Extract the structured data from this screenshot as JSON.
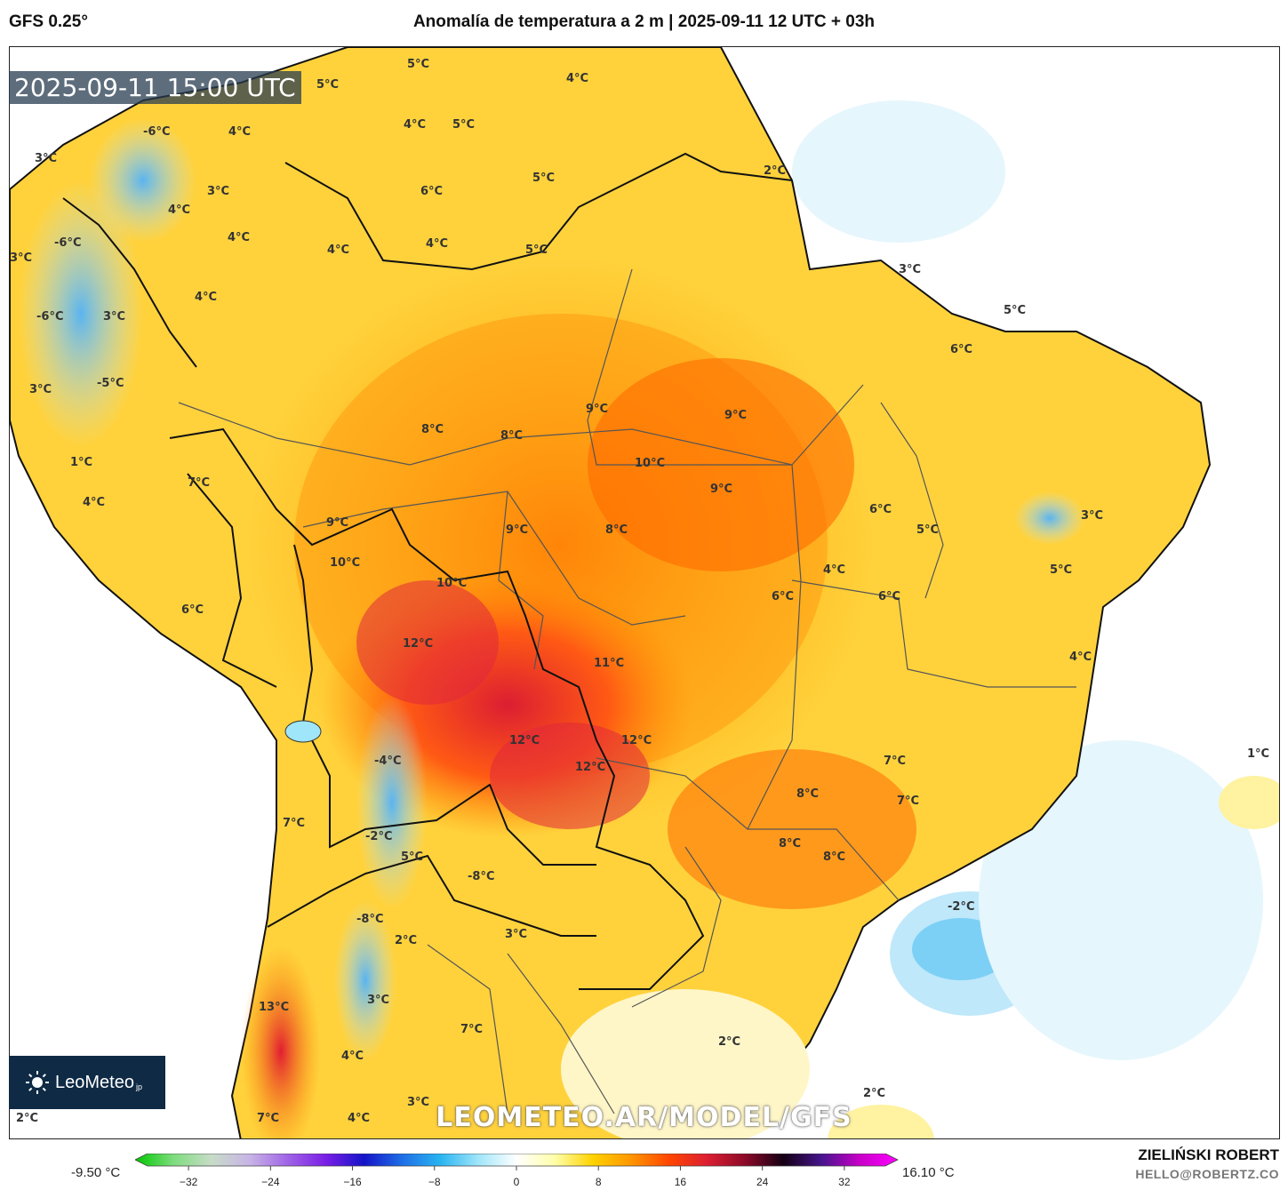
{
  "header": {
    "model": "GFS 0.25°",
    "title": "Anomalía de temperatura a 2 m | 2025-09-11 12 UTC + 03h"
  },
  "timestamp": "2025-09-11 15:00 UTC",
  "watermark": "LEOMETEO.AR/MODEL/GFS",
  "logo": {
    "text": "LeoMeteo",
    "suffix": "jp"
  },
  "credits": {
    "author": "ZIELIŃSKI ROBERT",
    "contact": "HELLO@ROBERTZ.CO"
  },
  "colorbar": {
    "min_label": "-9.50 °C",
    "max_label": "16.10 °C",
    "ticks": [
      "−32",
      "−24",
      "−16",
      "−8",
      "0",
      "8",
      "16",
      "24",
      "32"
    ],
    "range": [
      -36,
      36
    ],
    "colors": [
      "#00c800",
      "#7ddc7d",
      "#c8dcc8",
      "#c8b4e6",
      "#a064e6",
      "#7a1ee6",
      "#1414c8",
      "#1e6ee6",
      "#28b4f0",
      "#a0e6fa",
      "#ffffff",
      "#ffffaa",
      "#ffd200",
      "#ff9600",
      "#ff4600",
      "#dc1e32",
      "#8c0a28",
      "#140014",
      "#46148c",
      "#c800c8",
      "#ff00ff"
    ]
  },
  "map_labels": [
    "5°C",
    "5°C",
    "4°C",
    "5°C",
    "-6°C",
    "4°C",
    "3°C",
    "4°C",
    "2°C",
    "6°C",
    "5°C",
    "3°C",
    "3°C",
    "4°C",
    "-6°C",
    "4°C",
    "4°C",
    "4°C",
    "5°C",
    "3°C",
    "4°C",
    "-6°C",
    "3°C",
    "5°C",
    "6°C",
    "-5°C",
    "3°C",
    "9°C",
    "9°C",
    "8°C",
    "8°C",
    "1°C",
    "10°C",
    "7°C",
    "9°C",
    "4°C",
    "6°C",
    "3°C",
    "9°C",
    "9°C",
    "8°C",
    "5°C",
    "10°C",
    "4°C",
    "5°C",
    "10°C",
    "6°C",
    "6°C",
    "6°C",
    "12°C",
    "11°C",
    "4°C",
    "-4°C",
    "12°C",
    "12°C",
    "12°C",
    "7°C",
    "1°C",
    "7°C",
    "8°C",
    "7°C",
    "-2°C",
    "8°C",
    "5°C",
    "8°C",
    "-8°C",
    "-2°C",
    "-8°C",
    "2°C",
    "3°C",
    "13°C",
    "3°C",
    "7°C",
    "2°C",
    "4°C",
    "3°C",
    "2°C",
    "2°C",
    "4°C",
    "7°C"
  ]
}
